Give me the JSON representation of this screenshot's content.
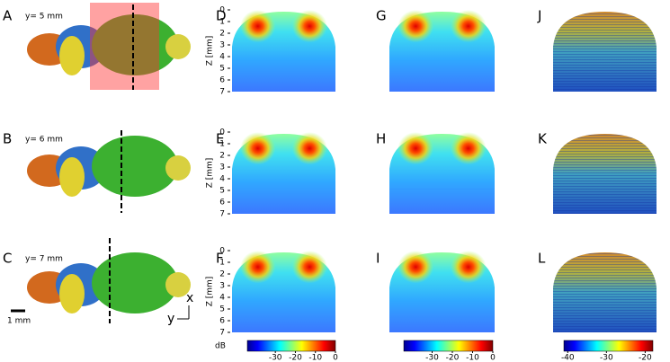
{
  "panels": [
    {
      "letter": "A",
      "label": "y= 5 mm"
    },
    {
      "letter": "B",
      "label": "y= 6 mm"
    },
    {
      "letter": "C",
      "label": "y= 7 mm"
    }
  ],
  "maps": {
    "letters": [
      [
        "D",
        "G",
        "J"
      ],
      [
        "E",
        "H",
        "K"
      ],
      [
        "F",
        "I",
        "L"
      ]
    ]
  },
  "z_axis": {
    "label": "Z [mm]",
    "lim": [
      0,
      7
    ],
    "ticks": [
      0,
      1,
      2,
      3,
      4,
      5,
      6,
      7
    ]
  },
  "colorbars": [
    {
      "label": "dB",
      "lim": [
        -44,
        0
      ],
      "ticks": [
        -30,
        -20,
        -10,
        0
      ]
    },
    {
      "lim": [
        -44,
        0
      ],
      "ticks": [
        -30,
        -20,
        -10,
        0
      ]
    },
    {
      "lim": [
        -41,
        -18
      ],
      "ticks": [
        -40,
        -30,
        -20
      ]
    }
  ],
  "scale_bar": "1 mm",
  "axes": {
    "x": "x",
    "y": "y"
  }
}
